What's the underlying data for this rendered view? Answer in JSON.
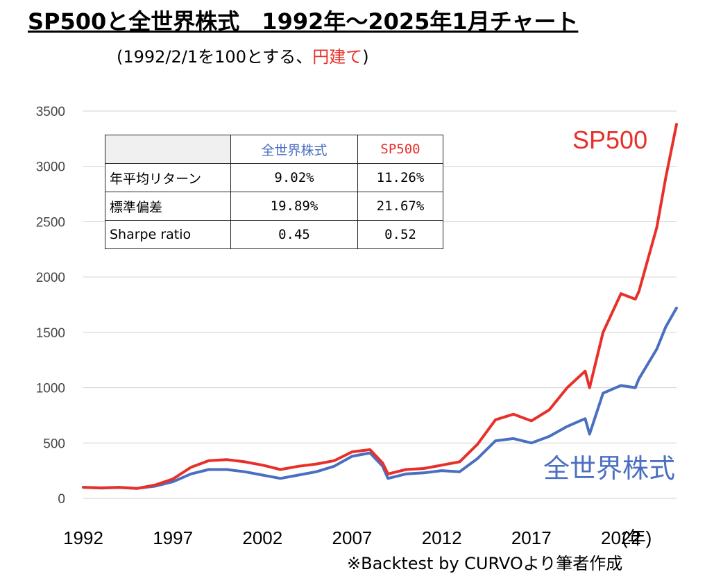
{
  "title": "SP500と全世界株式　1992年～2025年1月チャート",
  "subtitle": {
    "prefix": "(1992/2/1を100とする、",
    "emphasis": "円建て",
    "suffix": ")"
  },
  "source_note": "※Backtest by CURVOより筆者作成",
  "x_unit": "(年)",
  "stats_table": {
    "columns": [
      "",
      "全世界株式",
      "SP500"
    ],
    "rows": [
      {
        "label": "年平均リターン",
        "world": "9.02%",
        "sp500": "11.26%"
      },
      {
        "label": "標準偏差",
        "world": "19.89%",
        "sp500": "21.67%"
      },
      {
        "label": "Sharpe ratio",
        "world": "0.45",
        "sp500": "0.52"
      }
    ]
  },
  "colors": {
    "sp500": "#e8302a",
    "world": "#4a6fc1",
    "grid": "#d0d0d0"
  },
  "chart_data": {
    "type": "line",
    "xlabel": "(年)",
    "ylabel": "",
    "xlim": [
      1992,
      2025.1
    ],
    "ylim": [
      0,
      3500
    ],
    "yticks": [
      0,
      500,
      1000,
      1500,
      2000,
      2500,
      3000,
      3500
    ],
    "xticks": [
      1992,
      1997,
      2002,
      2007,
      2012,
      2017,
      2022
    ],
    "grid": "horizontal",
    "x": [
      1992,
      1993,
      1994,
      1995,
      1996,
      1997,
      1998,
      1999,
      2000,
      2001,
      2002,
      2003,
      2004,
      2005,
      2006,
      2007,
      2008,
      2008.7,
      2009,
      2010,
      2011,
      2012,
      2013,
      2014,
      2015,
      2016,
      2017,
      2018,
      2019,
      2020,
      2020.25,
      2021,
      2022,
      2022.8,
      2023,
      2024,
      2024.5,
      2025.1
    ],
    "series": [
      {
        "name": "SP500",
        "color": "#e8302a",
        "values": [
          100,
          95,
          100,
          90,
          120,
          175,
          280,
          340,
          350,
          330,
          300,
          260,
          290,
          310,
          340,
          420,
          440,
          320,
          220,
          260,
          270,
          300,
          330,
          490,
          710,
          760,
          700,
          800,
          1000,
          1150,
          1000,
          1500,
          1850,
          1800,
          1870,
          2450,
          2900,
          3380
        ]
      },
      {
        "name": "全世界株式",
        "color": "#4a6fc1",
        "values": [
          100,
          92,
          98,
          90,
          110,
          150,
          220,
          260,
          260,
          240,
          210,
          180,
          210,
          240,
          290,
          380,
          410,
          290,
          180,
          220,
          230,
          250,
          240,
          360,
          520,
          540,
          500,
          560,
          650,
          720,
          580,
          950,
          1020,
          1000,
          1080,
          1350,
          1550,
          1720
        ]
      }
    ],
    "annotations": [
      {
        "text": "SP500",
        "series": "SP500"
      },
      {
        "text": "全世界株式",
        "series": "全世界株式"
      }
    ]
  }
}
